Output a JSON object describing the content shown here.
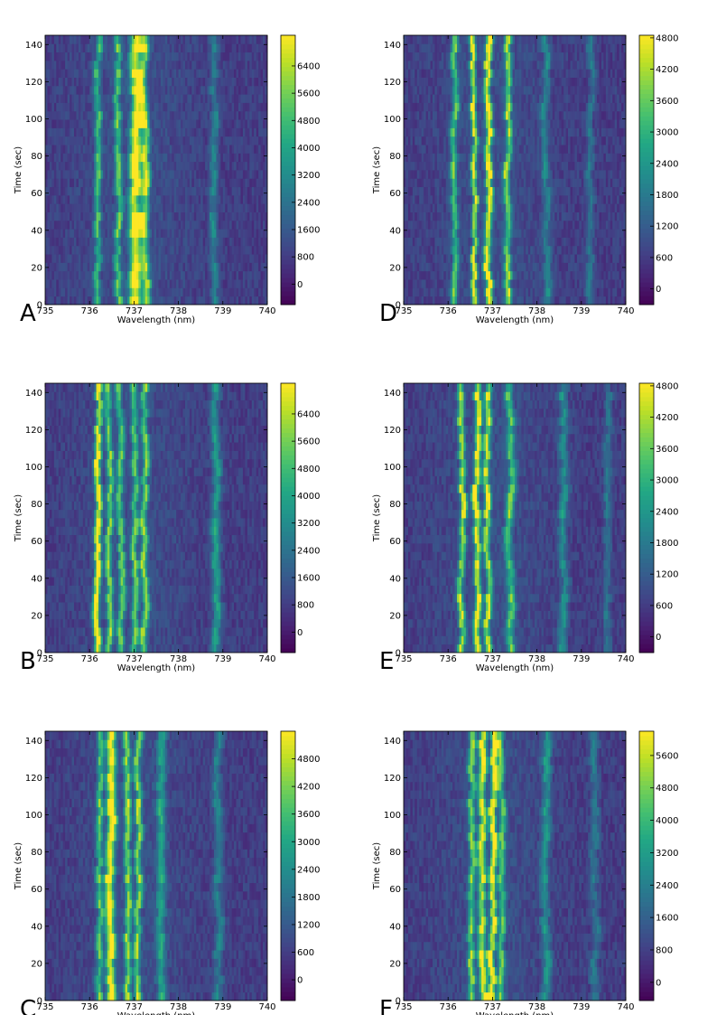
{
  "colormap": [
    "#440154",
    "#482475",
    "#414487",
    "#355f8d",
    "#2a788e",
    "#21918c",
    "#22a884",
    "#44bf70",
    "#7ad151",
    "#bddf26",
    "#fde725"
  ],
  "chart_data": [
    {
      "panel": "A",
      "type": "heatmap",
      "xlabel": "Wavelength (nm)",
      "ylabel": "Time (sec)",
      "x_ticks": [
        "735",
        "736",
        "737",
        "738",
        "739",
        "740"
      ],
      "y_ticks": [
        "0",
        "20",
        "40",
        "60",
        "80",
        "100",
        "120",
        "140"
      ],
      "xlim": [
        735,
        740
      ],
      "ylim": [
        0,
        145
      ],
      "colorbar_ticks": [
        "0",
        "800",
        "1600",
        "2400",
        "3200",
        "4000",
        "4800",
        "5600",
        "6400"
      ],
      "clim": [
        -600,
        7300
      ],
      "peaks": [
        {
          "x": 736.2,
          "w": 0.05,
          "a": 0.45
        },
        {
          "x": 736.65,
          "w": 0.05,
          "a": 0.5
        },
        {
          "x": 737.05,
          "w": 0.09,
          "a": 0.85
        },
        {
          "x": 737.25,
          "w": 0.06,
          "a": 0.6
        },
        {
          "x": 738.8,
          "w": 0.06,
          "a": 0.25
        }
      ],
      "seed": 11
    },
    {
      "panel": "D",
      "type": "heatmap",
      "xlabel": "Wavelength (nm)",
      "ylabel": "Time (sec)",
      "x_ticks": [
        "735",
        "736",
        "737",
        "738",
        "739",
        "740"
      ],
      "y_ticks": [
        "0",
        "20",
        "40",
        "60",
        "80",
        "100",
        "120",
        "140"
      ],
      "xlim": [
        735,
        740
      ],
      "ylim": [
        0,
        145
      ],
      "colorbar_ticks": [
        "0",
        "600",
        "1200",
        "1800",
        "2400",
        "3000",
        "3600",
        "4200",
        "4800"
      ],
      "clim": [
        -300,
        4850
      ],
      "peaks": [
        {
          "x": 736.15,
          "w": 0.05,
          "a": 0.5
        },
        {
          "x": 736.6,
          "w": 0.04,
          "a": 0.75
        },
        {
          "x": 736.9,
          "w": 0.05,
          "a": 0.85
        },
        {
          "x": 737.35,
          "w": 0.05,
          "a": 0.6
        },
        {
          "x": 738.2,
          "w": 0.06,
          "a": 0.25
        },
        {
          "x": 739.2,
          "w": 0.06,
          "a": 0.2
        }
      ],
      "seed": 23
    },
    {
      "panel": "B",
      "type": "heatmap",
      "xlabel": "Wavelength (nm)",
      "ylabel": "Time (sec)",
      "x_ticks": [
        "735",
        "736",
        "737",
        "738",
        "739",
        "740"
      ],
      "y_ticks": [
        "0",
        "20",
        "40",
        "60",
        "80",
        "100",
        "120",
        "140"
      ],
      "xlim": [
        735,
        740
      ],
      "ylim": [
        0,
        145
      ],
      "colorbar_ticks": [
        "0",
        "800",
        "1600",
        "2400",
        "3200",
        "4000",
        "4800",
        "5600",
        "6400"
      ],
      "clim": [
        -600,
        7300
      ],
      "peaks": [
        {
          "x": 736.2,
          "w": 0.05,
          "a": 0.85
        },
        {
          "x": 736.45,
          "w": 0.05,
          "a": 0.55
        },
        {
          "x": 736.7,
          "w": 0.05,
          "a": 0.5
        },
        {
          "x": 737.0,
          "w": 0.05,
          "a": 0.5
        },
        {
          "x": 737.25,
          "w": 0.05,
          "a": 0.55
        },
        {
          "x": 738.85,
          "w": 0.07,
          "a": 0.35
        }
      ],
      "seed": 37
    },
    {
      "panel": "E",
      "type": "heatmap",
      "xlabel": "Wavelength (nm)",
      "ylabel": "Time (sec)",
      "x_ticks": [
        "735",
        "736",
        "737",
        "738",
        "739",
        "740"
      ],
      "y_ticks": [
        "0",
        "20",
        "40",
        "60",
        "80",
        "100",
        "120",
        "140"
      ],
      "xlim": [
        735,
        740
      ],
      "ylim": [
        0,
        145
      ],
      "colorbar_ticks": [
        "0",
        "600",
        "1200",
        "1800",
        "2400",
        "3000",
        "3600",
        "4200",
        "4800"
      ],
      "clim": [
        -300,
        4850
      ],
      "peaks": [
        {
          "x": 736.3,
          "w": 0.05,
          "a": 0.65
        },
        {
          "x": 736.65,
          "w": 0.05,
          "a": 0.8
        },
        {
          "x": 736.9,
          "w": 0.05,
          "a": 0.7
        },
        {
          "x": 737.4,
          "w": 0.06,
          "a": 0.5
        },
        {
          "x": 738.6,
          "w": 0.07,
          "a": 0.3
        },
        {
          "x": 739.6,
          "w": 0.06,
          "a": 0.2
        }
      ],
      "seed": 41
    },
    {
      "panel": "C",
      "type": "heatmap",
      "xlabel": "Wavelength (nm)",
      "ylabel": "Time (sec)",
      "x_ticks": [
        "735",
        "736",
        "737",
        "738",
        "739",
        "740"
      ],
      "y_ticks": [
        "0",
        "20",
        "40",
        "60",
        "80",
        "100",
        "120",
        "140"
      ],
      "xlim": [
        735,
        740
      ],
      "ylim": [
        0,
        145
      ],
      "colorbar_ticks": [
        "0",
        "600",
        "1200",
        "1800",
        "2400",
        "3000",
        "3600",
        "4200",
        "4800"
      ],
      "clim": [
        -450,
        5400
      ],
      "peaks": [
        {
          "x": 736.25,
          "w": 0.05,
          "a": 0.5
        },
        {
          "x": 736.5,
          "w": 0.07,
          "a": 0.85
        },
        {
          "x": 736.85,
          "w": 0.05,
          "a": 0.6
        },
        {
          "x": 737.1,
          "w": 0.05,
          "a": 0.6
        },
        {
          "x": 737.6,
          "w": 0.07,
          "a": 0.35
        },
        {
          "x": 738.9,
          "w": 0.07,
          "a": 0.25
        }
      ],
      "seed": 53
    },
    {
      "panel": "F",
      "type": "heatmap",
      "xlabel": "Wavelength (nm)",
      "ylabel": "Time (sec)",
      "x_ticks": [
        "735",
        "736",
        "737",
        "738",
        "739",
        "740"
      ],
      "y_ticks": [
        "0",
        "20",
        "40",
        "60",
        "80",
        "100",
        "120",
        "140"
      ],
      "xlim": [
        735,
        740
      ],
      "ylim": [
        0,
        145
      ],
      "colorbar_ticks": [
        "0",
        "800",
        "1600",
        "2400",
        "3200",
        "4000",
        "4800",
        "5600"
      ],
      "clim": [
        -450,
        6200
      ],
      "peaks": [
        {
          "x": 736.55,
          "w": 0.05,
          "a": 0.55
        },
        {
          "x": 736.8,
          "w": 0.06,
          "a": 0.7
        },
        {
          "x": 737.0,
          "w": 0.05,
          "a": 0.85
        },
        {
          "x": 737.2,
          "w": 0.05,
          "a": 0.5
        },
        {
          "x": 738.2,
          "w": 0.07,
          "a": 0.3
        },
        {
          "x": 739.3,
          "w": 0.07,
          "a": 0.2
        }
      ],
      "seed": 67
    }
  ]
}
